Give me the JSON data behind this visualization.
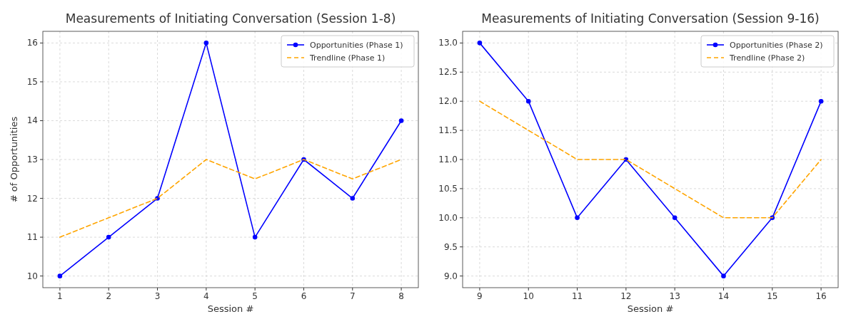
{
  "chart_data": [
    {
      "type": "line",
      "title": "Measurements of Initiating Conversation (Session 1-8)",
      "xlabel": "Session #",
      "ylabel": "# of Opportunities",
      "x": [
        1,
        2,
        3,
        4,
        5,
        6,
        7,
        8
      ],
      "xlim": [
        0.65,
        8.35
      ],
      "ylim": [
        9.7,
        16.3
      ],
      "xticks": [
        1,
        2,
        3,
        4,
        5,
        6,
        7,
        8
      ],
      "yticks": [
        10,
        11,
        12,
        13,
        14,
        15,
        16
      ],
      "grid": true,
      "legend": "top right",
      "series": [
        {
          "name": "Opportunities (Phase 1)",
          "color": "#0000ff",
          "values": [
            10,
            11,
            12,
            16,
            11,
            13,
            12,
            14
          ],
          "marker": "circle",
          "line_style": "solid"
        },
        {
          "name": "Trendline (Phase 1)",
          "color": "#ffa500",
          "values": [
            11,
            11.5,
            12,
            13,
            12.5,
            13,
            12.5,
            13
          ],
          "marker": "none",
          "line_style": "dashed"
        }
      ]
    },
    {
      "type": "line",
      "title": "Measurements of Initiating Conversation (Session 9-16)",
      "xlabel": "Session #",
      "x": [
        9,
        10,
        11,
        12,
        13,
        14,
        15,
        16
      ],
      "xlim": [
        8.65,
        16.35
      ],
      "ylim": [
        8.8,
        13.2
      ],
      "xticks": [
        9,
        10,
        11,
        12,
        13,
        14,
        15,
        16
      ],
      "yticks": [
        {
          "value": 9,
          "label": "9.0"
        },
        {
          "value": 9.5,
          "label": "9.5"
        },
        {
          "value": 10,
          "label": "10.0"
        },
        {
          "value": 10.5,
          "label": "10.5"
        },
        {
          "value": 11,
          "label": "11.0"
        },
        {
          "value": 11.5,
          "label": "11.5"
        },
        {
          "value": 12,
          "label": "12.0"
        },
        {
          "value": 12.5,
          "label": "12.5"
        },
        {
          "value": 13,
          "label": "13.0"
        }
      ],
      "grid": true,
      "legend": "top right",
      "series": [
        {
          "name": "Opportunities (Phase 2)",
          "color": "#0000ff",
          "values": [
            13,
            12,
            10,
            11,
            10,
            9,
            10,
            12
          ],
          "marker": "circle",
          "line_style": "solid"
        },
        {
          "name": "Trendline (Phase 2)",
          "color": "#ffa500",
          "values": [
            12,
            11.5,
            11,
            11,
            10.5,
            10,
            10,
            11
          ],
          "marker": "none",
          "line_style": "dashed"
        }
      ]
    }
  ]
}
